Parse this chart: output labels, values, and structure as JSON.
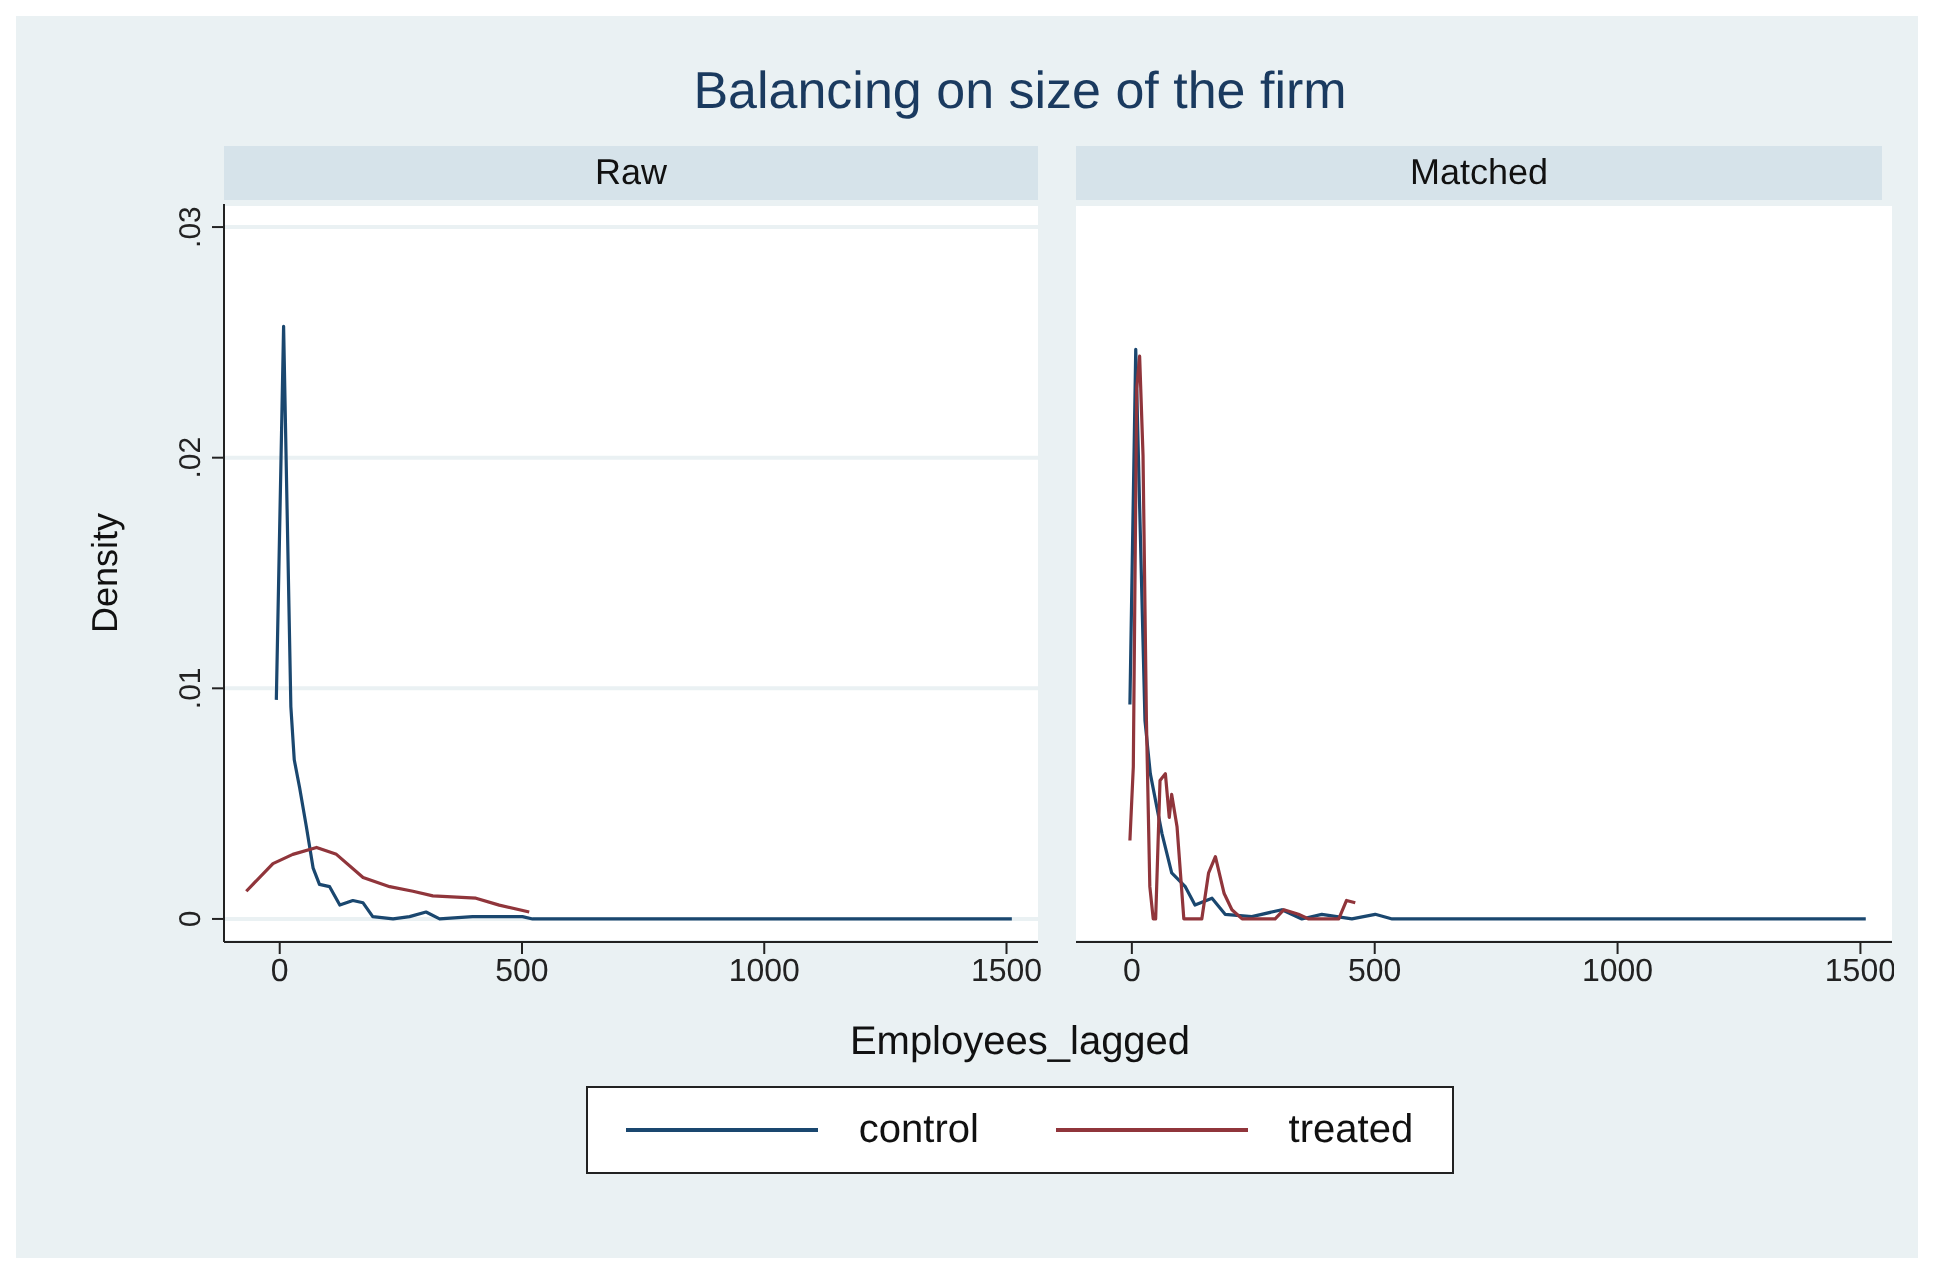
{
  "chart_data": [
    {
      "type": "line",
      "title": "Balancing on size of the firm",
      "subtitle": "Raw",
      "xlabel": "Employees_lagged",
      "ylabel": "Density",
      "xlim": [
        -115,
        1565
      ],
      "xticks": [
        0,
        500,
        1000,
        1500
      ],
      "ylim": [
        -0.001,
        0.031
      ],
      "yticks": [
        {
          "value": 0,
          "label": "0"
        },
        {
          "value": 0.01,
          "label": ".01"
        },
        {
          "value": 0.02,
          "label": ".02"
        },
        {
          "value": 0.03,
          "label": ".03"
        }
      ],
      "grid": "y",
      "legend": "bottom",
      "series": [
        {
          "name": "control",
          "color": "#1a476f",
          "x": [
            -7,
            8,
            23,
            30,
            41,
            55,
            69,
            82,
            103,
            124,
            151,
            172,
            192,
            234,
            268,
            302,
            330,
            398,
            501,
            522,
            1511
          ],
          "values": [
            0.0095,
            0.0257,
            0.0092,
            0.0069,
            0.0057,
            0.004,
            0.0022,
            0.0015,
            0.0014,
            0.0006,
            0.0008,
            0.0007,
            0.0001,
            0,
            0.0001,
            0.0003,
            0,
            0.0001,
            0.0001,
            0,
            0
          ]
        },
        {
          "name": "treated",
          "color": "#90353b",
          "x": [
            -69,
            -14,
            27,
            76,
            117,
            172,
            227,
            275,
            316,
            405,
            453,
            515
          ],
          "values": [
            0.0012,
            0.0024,
            0.0028,
            0.0031,
            0.0028,
            0.0018,
            0.0014,
            0.0012,
            0.001,
            0.0009,
            0.0006,
            0.0003
          ]
        }
      ]
    },
    {
      "type": "line",
      "subtitle": "Matched",
      "xlim": [
        -115,
        1565
      ],
      "xticks": [
        0,
        500,
        1000,
        1500
      ],
      "ylim": [
        -0.001,
        0.031
      ],
      "yticks": [
        {
          "value": 0,
          "label": null
        },
        {
          "value": 0.01,
          "label": null
        },
        {
          "value": 0.02,
          "label": null
        },
        {
          "value": 0.03,
          "label": null
        }
      ],
      "grid": "y",
      "tick_labels": "x",
      "series": [
        {
          "color": "#1a476f",
          "x": [
            -4,
            8,
            27,
            38,
            62,
            82,
            110,
            130,
            165,
            192,
            247,
            309,
            350,
            391,
            453,
            501,
            536,
            1511
          ],
          "values": [
            0.0093,
            0.0247,
            0.0086,
            0.0063,
            0.0037,
            0.002,
            0.0014,
            0.0006,
            0.0009,
            0.0002,
            0.0001,
            0.0004,
            0,
            0.0002,
            0,
            0.0002,
            0,
            0
          ]
        },
        {
          "color": "#90353b",
          "x": [
            -4,
            3,
            10,
            16,
            23,
            30,
            37,
            44,
            49,
            58,
            69,
            77,
            82,
            93,
            107,
            144,
            158,
            172,
            190,
            206,
            227,
            295,
            313,
            343,
            364,
            426,
            442,
            460
          ],
          "values": [
            0.0034,
            0.0066,
            0.023,
            0.0244,
            0.0201,
            0.0086,
            0.0014,
            0,
            0,
            0.006,
            0.0063,
            0.0044,
            0.0054,
            0.004,
            0,
            0,
            0.002,
            0.0027,
            0.0011,
            0.0004,
            0,
            0,
            0.0004,
            0.0002,
            0,
            0,
            0.0008,
            0.0007
          ]
        }
      ]
    }
  ]
}
